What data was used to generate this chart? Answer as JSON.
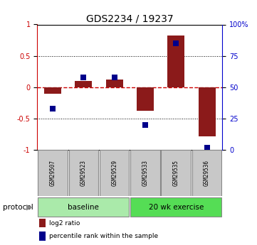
{
  "title": "GDS2234 / 19237",
  "samples": [
    "GSM29507",
    "GSM29523",
    "GSM29529",
    "GSM29533",
    "GSM29535",
    "GSM29536"
  ],
  "log2_ratio": [
    -0.1,
    0.1,
    0.12,
    -0.38,
    0.82,
    -0.78
  ],
  "percentile_rank": [
    33,
    58,
    58,
    20,
    85,
    2
  ],
  "bar_color": "#8B1A1A",
  "dot_color": "#00008B",
  "ylim_left": [
    -1,
    1
  ],
  "ylim_right": [
    0,
    100
  ],
  "yticks_left": [
    -1,
    -0.5,
    0,
    0.5,
    1
  ],
  "yticks_right": [
    0,
    25,
    50,
    75,
    100
  ],
  "ytick_labels_left": [
    "-1",
    "-0.5",
    "0",
    "0.5",
    "1"
  ],
  "ytick_labels_right": [
    "0",
    "25",
    "50",
    "75",
    "100%"
  ],
  "baseline_color": "#AAEAAA",
  "exercise_color": "#55DD55",
  "sample_box_color": "#C8C8C8",
  "zero_line_color": "#CC0000",
  "grid_color": "#000000",
  "bg_color": "#FFFFFF",
  "bar_width": 0.55,
  "dot_size": 28,
  "legend_items": [
    {
      "color": "#8B1A1A",
      "label": "log2 ratio"
    },
    {
      "color": "#00008B",
      "label": "percentile rank within the sample"
    }
  ]
}
